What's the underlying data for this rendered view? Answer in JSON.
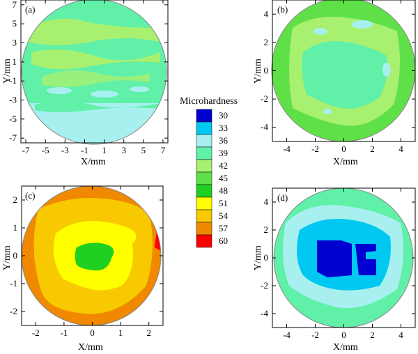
{
  "chart_data": [
    {
      "type": "heatmap",
      "panel_label": "(a)",
      "xlabel": "X/mm",
      "ylabel": "Y/mm",
      "x_ticks": [
        "-7",
        "-5",
        "-3",
        "-1",
        "1",
        "3",
        "5",
        "7"
      ],
      "y_ticks": [
        "7",
        "5",
        "3",
        "1",
        "-1",
        "-3",
        "-5",
        "-7"
      ],
      "xlim": [
        -7.5,
        7.5
      ],
      "ylim": [
        -7.5,
        7.5
      ],
      "shape": "circle",
      "regions": [
        {
          "level": 39,
          "description_value": "dominant"
        },
        {
          "level": 42,
          "description_value": "scattered patches upper half"
        },
        {
          "level": 36,
          "description_value": "lower band"
        }
      ]
    },
    {
      "type": "heatmap",
      "panel_label": "(b)",
      "xlabel": "X/mm",
      "ylabel": "Y/mm",
      "x_ticks": [
        "-4",
        "-2",
        "0",
        "2",
        "4"
      ],
      "y_ticks": [
        "4",
        "2",
        "0",
        "-2",
        "-4"
      ],
      "xlim": [
        -5,
        5
      ],
      "ylim": [
        -5,
        5
      ],
      "shape": "circle",
      "regions": [
        {
          "level": 45,
          "description_value": "outer ring"
        },
        {
          "level": 42,
          "description_value": "middle"
        },
        {
          "level": 39,
          "description_value": "center"
        },
        {
          "level": 36,
          "description_value": "small spots"
        }
      ]
    },
    {
      "type": "heatmap",
      "panel_label": "(c)",
      "xlabel": "X/mm",
      "ylabel": "Y/mm",
      "x_ticks": [
        "-2",
        "-1",
        "0",
        "1",
        "2"
      ],
      "y_ticks": [
        "2",
        "1",
        "0",
        "-1",
        "-2"
      ],
      "xlim": [
        -2.5,
        2.5
      ],
      "ylim": [
        -2.5,
        2.5
      ],
      "shape": "circle",
      "regions": [
        {
          "level": 54,
          "description_value": "outer"
        },
        {
          "level": 51,
          "description_value": "middle"
        },
        {
          "level": 48,
          "description_value": "inner"
        },
        {
          "level": 45,
          "description_value": "center"
        },
        {
          "level": 57,
          "description_value": "right edge"
        }
      ]
    },
    {
      "type": "heatmap",
      "panel_label": "(d)",
      "xlabel": "X/mm",
      "ylabel": "Y/mm",
      "x_ticks": [
        "-4",
        "-2",
        "0",
        "2",
        "4"
      ],
      "y_ticks": [
        "4",
        "2",
        "0",
        "-2",
        "-4"
      ],
      "xlim": [
        -5,
        5
      ],
      "ylim": [
        -5,
        5
      ],
      "shape": "circle",
      "regions": [
        {
          "level": 39,
          "description_value": "outer"
        },
        {
          "level": 36,
          "description_value": "middle"
        },
        {
          "level": 33,
          "description_value": "center"
        }
      ]
    }
  ],
  "colorbar": {
    "title": "Microhardness",
    "levels": [
      "30",
      "33",
      "36",
      "39",
      "42",
      "45",
      "48",
      "51",
      "54",
      "57",
      "60"
    ],
    "colors": [
      "#0000d0",
      "#00c8f0",
      "#a8f0f0",
      "#60f0a8",
      "#a8f070",
      "#60e048",
      "#20d020",
      "#ffff00",
      "#f8c800",
      "#f08800",
      "#ff0000"
    ]
  }
}
